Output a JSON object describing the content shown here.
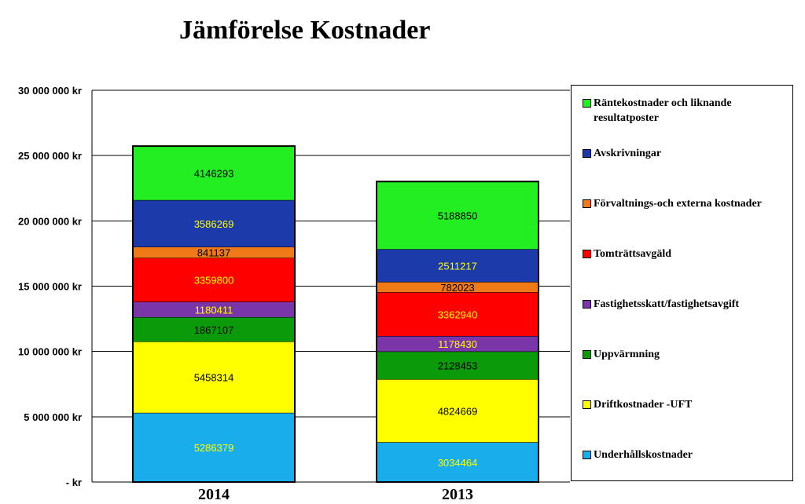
{
  "chart_data": {
    "type": "bar",
    "stacked": true,
    "title": "Jämförelse Kostnader",
    "categories": [
      "2014",
      "2013"
    ],
    "ylim": [
      0,
      30000000
    ],
    "yticks": [
      {
        "value": 0,
        "label": "- kr"
      },
      {
        "value": 5000000,
        "label": "5 000 000 kr"
      },
      {
        "value": 10000000,
        "label": "10 000 000 kr"
      },
      {
        "value": 15000000,
        "label": "15 000 000 kr"
      },
      {
        "value": 20000000,
        "label": "20 000 000 kr"
      },
      {
        "value": 25000000,
        "label": "25 000 000 kr"
      },
      {
        "value": 30000000,
        "label": "30 000 000 kr"
      }
    ],
    "grid": true,
    "legend_position": "right",
    "series": [
      {
        "name": "Underhållskostnader",
        "color": "#1AADEB",
        "label_color": "#FFFF00",
        "values": [
          5286379,
          3034464
        ]
      },
      {
        "name": "Driftkostnader  -UFT",
        "color": "#FFFF00",
        "label_color": "#000000",
        "values": [
          5458314,
          4824669
        ]
      },
      {
        "name": "Uppvärmning",
        "color": "#0A9A0A",
        "label_color": "#000000",
        "values": [
          1867107,
          2128453
        ]
      },
      {
        "name": "Fastighetsskatt/fastighetsavgift",
        "color": "#7A35A8",
        "label_color": "#FFFF00",
        "values": [
          1180411,
          1178430
        ]
      },
      {
        "name": "Tomträttsavgäld",
        "color": "#FF0000",
        "label_color": "#FFFF00",
        "values": [
          3359800,
          3362940
        ]
      },
      {
        "name": "Förvaltnings-och externa kostnader",
        "color": "#F07A18",
        "label_color": "#000000",
        "values": [
          841137,
          782023
        ]
      },
      {
        "name": "Avskrivningar",
        "color": "#1C3AAA",
        "label_color": "#FFFF00",
        "values": [
          3586269,
          2511217
        ]
      },
      {
        "name": "Räntekostnader och liknande resultatposter",
        "color": "#22EE22",
        "label_color": "#000000",
        "values": [
          4146293,
          5188850
        ]
      }
    ]
  }
}
